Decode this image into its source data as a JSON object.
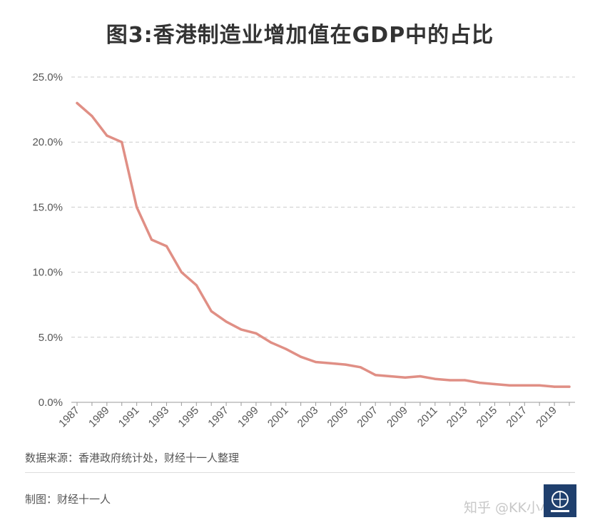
{
  "title": "图3:香港制造业增加值在GDP中的占比",
  "source": "数据来源：香港政府统计处，财经十一人整理",
  "maker": "制图：财经十一人",
  "watermark": "知乎 @KK小小",
  "colors": {
    "line": "#e08f85",
    "grid": "#cccccc",
    "text": "#555555",
    "logo": "#1f3f6d"
  },
  "chart_data": {
    "type": "line",
    "title": "图3:香港制造业增加值在GDP中的占比",
    "xlabel": "",
    "ylabel": "",
    "ylim": [
      0,
      25
    ],
    "yticks": [
      "0.0%",
      "5.0%",
      "10.0%",
      "15.0%",
      "20.0%",
      "25.0%"
    ],
    "ytick_values": [
      0,
      5,
      10,
      15,
      20,
      25
    ],
    "xtick_labels": [
      "1987",
      "1989",
      "1991",
      "1993",
      "1995",
      "1997",
      "1999",
      "2001",
      "2003",
      "2005",
      "2007",
      "2009",
      "2011",
      "2013",
      "2015",
      "2017",
      "2019"
    ],
    "grid": true,
    "x": [
      1987,
      1988,
      1989,
      1990,
      1991,
      1992,
      1993,
      1994,
      1995,
      1996,
      1997,
      1998,
      1999,
      2000,
      2001,
      2002,
      2003,
      2004,
      2005,
      2006,
      2007,
      2008,
      2009,
      2010,
      2011,
      2012,
      2013,
      2014,
      2015,
      2016,
      2017,
      2018,
      2019,
      2020
    ],
    "series": [
      {
        "values": [
          23.0,
          22.0,
          20.5,
          20.0,
          15.0,
          12.5,
          12.0,
          10.0,
          9.0,
          7.0,
          6.2,
          5.6,
          5.3,
          4.6,
          4.1,
          3.5,
          3.1,
          3.0,
          2.9,
          2.7,
          2.1,
          2.0,
          1.9,
          2.0,
          1.8,
          1.7,
          1.7,
          1.5,
          1.4,
          1.3,
          1.3,
          1.3,
          1.2,
          1.2
        ]
      }
    ]
  }
}
